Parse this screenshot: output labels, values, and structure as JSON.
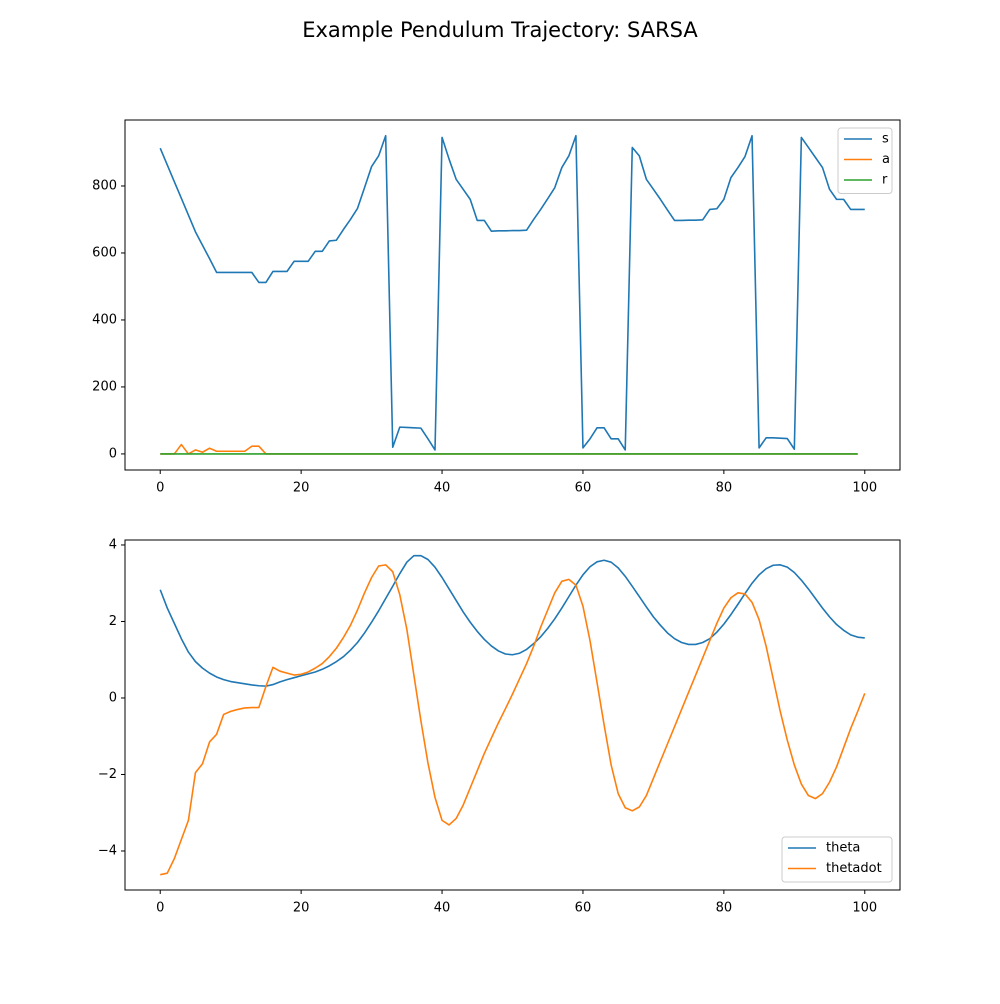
{
  "title": "Example Pendulum Trajectory: SARSA",
  "chart_data": [
    {
      "type": "line",
      "xlim": [
        -5,
        105
      ],
      "ylim": [
        -48,
        997
      ],
      "xticks": [
        0,
        20,
        40,
        60,
        80,
        100
      ],
      "yticks": [
        0,
        200,
        400,
        600,
        800
      ],
      "legend": "upper right",
      "series": [
        {
          "name": "s",
          "color": "#1f77b4",
          "values": [
            913,
            863,
            813,
            763,
            713,
            663,
            623,
            583,
            542,
            542,
            542,
            542,
            542,
            542,
            512,
            512,
            545,
            545,
            545,
            575,
            575,
            575,
            605,
            605,
            636,
            638,
            670,
            700,
            733,
            795,
            858,
            890,
            950,
            20,
            80,
            79,
            78,
            77,
            45,
            12,
            945,
            880,
            820,
            790,
            760,
            697,
            697,
            665,
            666,
            666,
            667,
            667,
            668,
            700,
            730,
            762,
            795,
            855,
            890,
            950,
            18,
            45,
            78,
            78,
            45,
            45,
            12,
            915,
            890,
            820,
            790,
            760,
            728,
            697,
            697,
            698,
            698,
            699,
            730,
            732,
            760,
            825,
            855,
            888,
            950,
            18,
            48,
            48,
            47,
            46,
            14,
            945,
            915,
            885,
            855,
            790,
            760,
            760,
            730,
            730,
            730
          ]
        },
        {
          "name": "a",
          "color": "#ff7f0e",
          "values": [
            0,
            0,
            0,
            28,
            0,
            12,
            5,
            17,
            8,
            8,
            8,
            8,
            8,
            23,
            23,
            0,
            0,
            0,
            0,
            0,
            0,
            0,
            0,
            0,
            0,
            0,
            0,
            0,
            0,
            0,
            0,
            0,
            0,
            0,
            0,
            0,
            0,
            0,
            0,
            0,
            0,
            0,
            0,
            0,
            0,
            0,
            0,
            0,
            0,
            0,
            0,
            0,
            0,
            0,
            0,
            0,
            0,
            0,
            0,
            0,
            0,
            0,
            0,
            0,
            0,
            0,
            0,
            0,
            0,
            0,
            0,
            0,
            0,
            0,
            0,
            0,
            0,
            0,
            0,
            0,
            0,
            0,
            0,
            0,
            0,
            0,
            0,
            0,
            0,
            0,
            0,
            0,
            0,
            0,
            0,
            0,
            0,
            0,
            0,
            0
          ]
        },
        {
          "name": "r",
          "color": "#2ca02c",
          "values": [
            0,
            0,
            0,
            0,
            0,
            0,
            0,
            0,
            0,
            0,
            0,
            0,
            0,
            0,
            0,
            0,
            0,
            0,
            0,
            0,
            0,
            0,
            0,
            0,
            0,
            0,
            0,
            0,
            0,
            0,
            0,
            0,
            0,
            0,
            0,
            0,
            0,
            0,
            0,
            0,
            0,
            0,
            0,
            0,
            0,
            0,
            0,
            0,
            0,
            0,
            0,
            0,
            0,
            0,
            0,
            0,
            0,
            0,
            0,
            0,
            0,
            0,
            0,
            0,
            0,
            0,
            0,
            0,
            0,
            0,
            0,
            0,
            0,
            0,
            0,
            0,
            0,
            0,
            0,
            0,
            0,
            0,
            0,
            0,
            0,
            0,
            0,
            0,
            0,
            0,
            0,
            0,
            0,
            0,
            0,
            0,
            0,
            0,
            0,
            0
          ]
        }
      ]
    },
    {
      "type": "line",
      "xlim": [
        -5,
        105
      ],
      "ylim": [
        -5.02,
        4.13
      ],
      "xticks": [
        0,
        20,
        40,
        60,
        80,
        100
      ],
      "yticks": [
        {
          "value": -4,
          "label": "−4"
        },
        {
          "value": -2,
          "label": "−2"
        },
        0,
        2,
        4
      ],
      "legend": "lower right",
      "series": [
        {
          "name": "theta",
          "color": "#1f77b4",
          "values": [
            2.83,
            2.35,
            1.95,
            1.55,
            1.2,
            0.95,
            0.78,
            0.65,
            0.55,
            0.48,
            0.43,
            0.4,
            0.37,
            0.34,
            0.32,
            0.31,
            0.35,
            0.42,
            0.48,
            0.53,
            0.58,
            0.63,
            0.68,
            0.75,
            0.84,
            0.95,
            1.08,
            1.25,
            1.45,
            1.7,
            1.98,
            2.28,
            2.6,
            2.92,
            3.25,
            3.55,
            3.72,
            3.72,
            3.62,
            3.42,
            3.15,
            2.85,
            2.55,
            2.25,
            1.98,
            1.74,
            1.53,
            1.36,
            1.23,
            1.15,
            1.13,
            1.17,
            1.27,
            1.42,
            1.6,
            1.82,
            2.07,
            2.35,
            2.65,
            2.95,
            3.22,
            3.43,
            3.56,
            3.6,
            3.55,
            3.4,
            3.18,
            2.92,
            2.65,
            2.38,
            2.12,
            1.9,
            1.7,
            1.55,
            1.45,
            1.4,
            1.4,
            1.45,
            1.55,
            1.72,
            1.93,
            2.18,
            2.45,
            2.73,
            3.0,
            3.22,
            3.38,
            3.47,
            3.48,
            3.42,
            3.28,
            3.08,
            2.85,
            2.6,
            2.35,
            2.12,
            1.92,
            1.77,
            1.65,
            1.59,
            1.57
          ]
        },
        {
          "name": "thetadot",
          "color": "#ff7f0e",
          "values": [
            -4.62,
            -4.58,
            -4.2,
            -3.7,
            -3.2,
            -1.95,
            -1.72,
            -1.15,
            -0.95,
            -0.43,
            -0.35,
            -0.3,
            -0.26,
            -0.25,
            -0.25,
            0.3,
            0.8,
            0.7,
            0.65,
            0.6,
            0.62,
            0.68,
            0.78,
            0.9,
            1.08,
            1.3,
            1.58,
            1.9,
            2.3,
            2.75,
            3.15,
            3.45,
            3.48,
            3.3,
            2.7,
            1.8,
            0.6,
            -0.6,
            -1.7,
            -2.6,
            -3.2,
            -3.32,
            -3.15,
            -2.8,
            -2.35,
            -1.9,
            -1.45,
            -1.05,
            -0.65,
            -0.28,
            0.1,
            0.5,
            0.9,
            1.35,
            1.85,
            2.3,
            2.75,
            3.05,
            3.1,
            2.95,
            2.4,
            1.5,
            0.4,
            -0.7,
            -1.75,
            -2.5,
            -2.87,
            -2.95,
            -2.85,
            -2.55,
            -2.1,
            -1.65,
            -1.2,
            -0.75,
            -0.3,
            0.15,
            0.6,
            1.05,
            1.5,
            1.95,
            2.35,
            2.62,
            2.75,
            2.72,
            2.5,
            2.05,
            1.35,
            0.5,
            -0.35,
            -1.1,
            -1.75,
            -2.25,
            -2.55,
            -2.63,
            -2.5,
            -2.2,
            -1.8,
            -1.3,
            -0.8,
            -0.35,
            0.12
          ]
        }
      ]
    }
  ]
}
